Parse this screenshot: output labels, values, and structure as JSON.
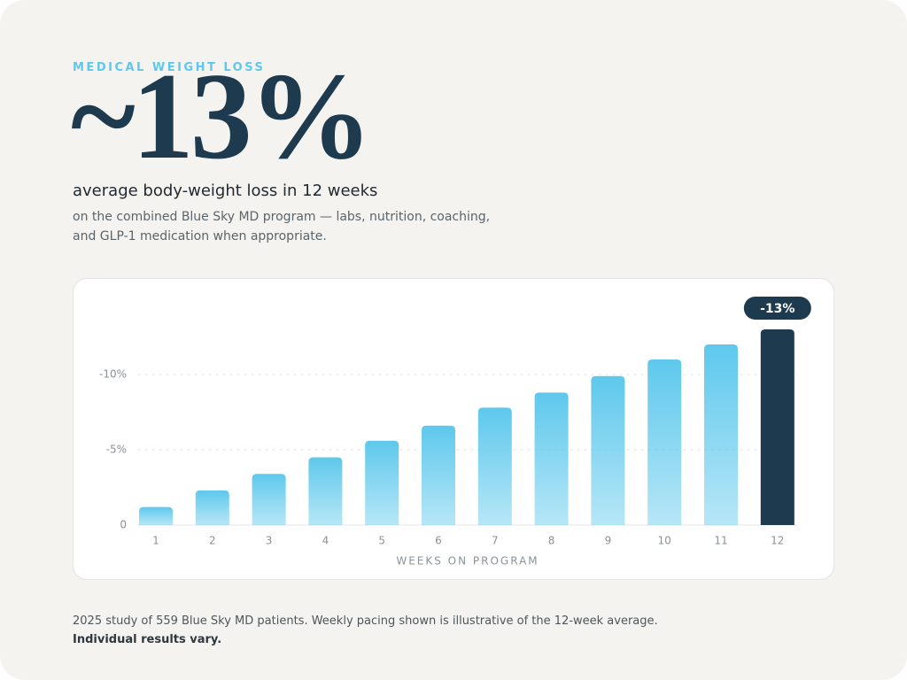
{
  "header": {
    "eyebrow": "MEDICAL WEIGHT LOSS",
    "headline": "~13%",
    "subtitle": "average body-weight loss in 12 weeks",
    "description": "on the combined Blue Sky MD program — labs, nutrition, coaching, and GLP-1 medication when appropriate."
  },
  "chart_data": {
    "type": "bar",
    "x_label": "WEEKS ON PROGRAM",
    "categories": [
      "1",
      "2",
      "3",
      "4",
      "5",
      "6",
      "7",
      "8",
      "9",
      "10",
      "11",
      "12"
    ],
    "values": [
      -1.2,
      -2.3,
      -3.4,
      -4.5,
      -5.6,
      -6.6,
      -7.8,
      -8.8,
      -9.9,
      -11,
      -12,
      -13
    ],
    "value_labels": [
      null,
      null,
      null,
      null,
      null,
      null,
      null,
      null,
      null,
      null,
      null,
      "-13%"
    ],
    "color": "#5ec8ec",
    "highlight_color": "#1d3a4e",
    "ylim": [
      0,
      -15
    ],
    "yticks": [
      0,
      {
        "value": -5,
        "label": "-5%"
      },
      {
        "value": -10,
        "label": "-10%"
      }
    ],
    "grid": true
  },
  "footnote": {
    "text": "2025 study of 559 Blue Sky MD patients. Weekly pacing shown is illustrative of the 12-week average.",
    "emphasis": "Individual results vary."
  }
}
